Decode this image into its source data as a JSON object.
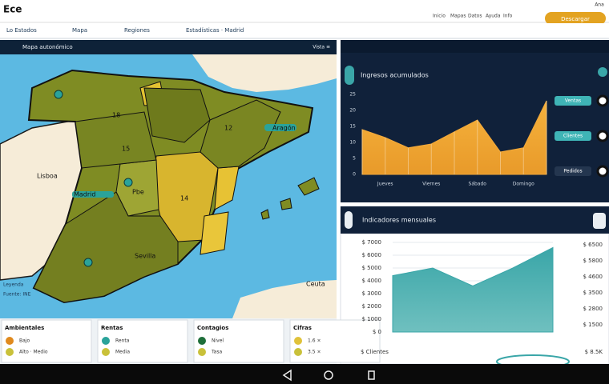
{
  "header": {
    "logo": "Ece",
    "nav": [
      "Inicio",
      "Mapas",
      "Datos",
      "Ayuda",
      "Info"
    ],
    "button": "Descargar",
    "user": "Ana"
  },
  "tabs": [
    "Lo Estados",
    "Mapa",
    "Regiones",
    "Estadísticas · Madrid"
  ],
  "map": {
    "title": "Mapa autonómico",
    "view": "Vista ≡",
    "labels": [
      "Lisboa",
      "18",
      "12",
      "15",
      "Pbe",
      "14",
      "Aragón",
      "Madrid",
      "Sevilla",
      "Ceuta"
    ],
    "notes": [
      "Leyenda",
      "Fuente: INE"
    ]
  },
  "legend_cards": [
    {
      "title": "Ambientales",
      "items": [
        "Bajo",
        "Alto · Medio"
      ]
    },
    {
      "title": "Rentas",
      "items": [
        "Renta",
        "Media"
      ]
    },
    {
      "title": "Contagios",
      "items": [
        "Nivel",
        "Tasa"
      ]
    },
    {
      "title": "Cifras",
      "items": [
        "1.6 ×",
        "3.5 ×"
      ]
    }
  ],
  "chart_data": [
    {
      "type": "area",
      "title": "Ingresos acumulados",
      "color": "#f2a93b",
      "categories": [
        null,
        "Jueves",
        null,
        "Viernes",
        null,
        "Sábado",
        null,
        "Domingo",
        null
      ],
      "values": [
        14,
        11.5,
        8.3,
        9.5,
        13.3,
        17,
        7,
        8.3,
        23
      ],
      "ylim": [
        0,
        25
      ],
      "yticks": [
        0,
        5,
        10,
        15,
        20,
        25
      ],
      "buttons": [
        "Ventas",
        "Clientes",
        "Pedidos"
      ]
    },
    {
      "type": "area",
      "title": "Indicadores mensuales",
      "color": "#3aa6a8",
      "values": [
        4400,
        5000,
        3600,
        5000,
        6600
      ],
      "ylim": [
        0,
        7000
      ],
      "yticks": [
        {
          "value": 0,
          "label": "$ 0"
        },
        {
          "value": 1000,
          "label": "$ 1000"
        },
        {
          "value": 2000,
          "label": "$ 2000"
        },
        {
          "value": 3000,
          "label": "$ 3000"
        },
        {
          "value": 4000,
          "label": "$ 4000"
        },
        {
          "value": 5000,
          "label": "$ 5000"
        },
        {
          "value": 6000,
          "label": "$ 6000"
        },
        {
          "value": 7000,
          "label": "$ 7000"
        }
      ],
      "side_labels": [
        "$ 6500",
        "$ 5800",
        "$ 4600",
        "$ 3500",
        "$ 2800",
        "$ 1500"
      ],
      "footer": [
        "$ Clientes",
        "$ 8.5K"
      ]
    }
  ]
}
